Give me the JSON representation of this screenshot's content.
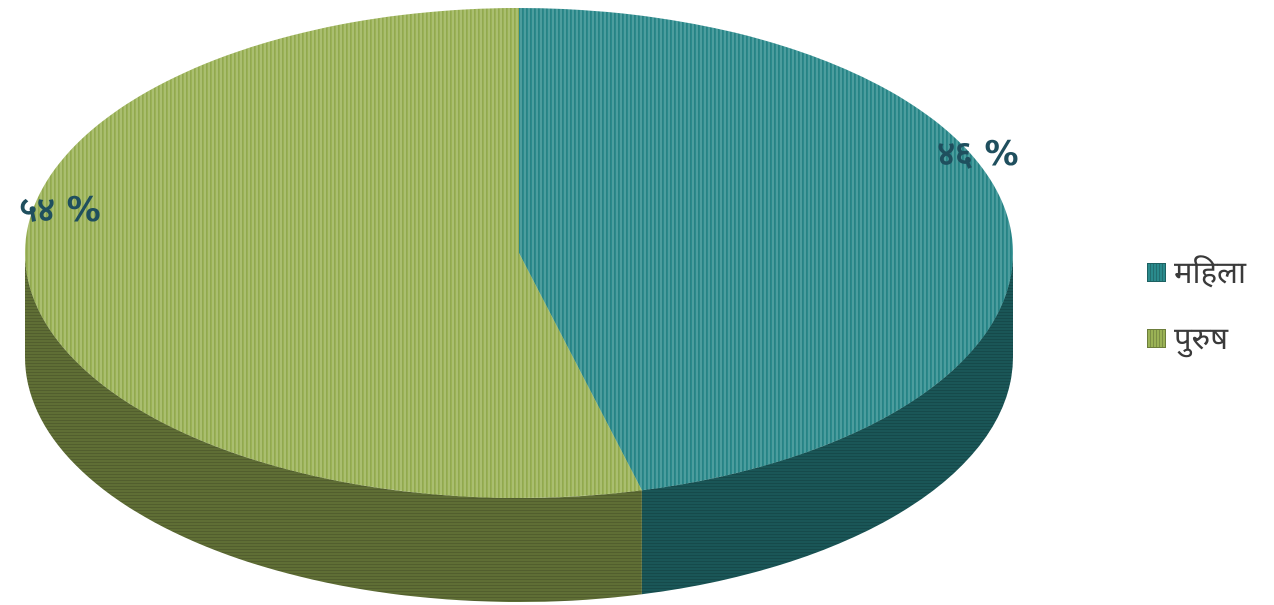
{
  "chart_data": {
    "type": "pie",
    "style": "3d",
    "slices": [
      {
        "label": "महिला",
        "value": 46,
        "data_label": "४६ %",
        "color": "#2a8a8c"
      },
      {
        "label": "पुरुष",
        "value": 54,
        "data_label": "५४ %",
        "color": "#9ab255"
      }
    ],
    "legend_position": "right",
    "data_label_color": "#1f4f5e"
  }
}
